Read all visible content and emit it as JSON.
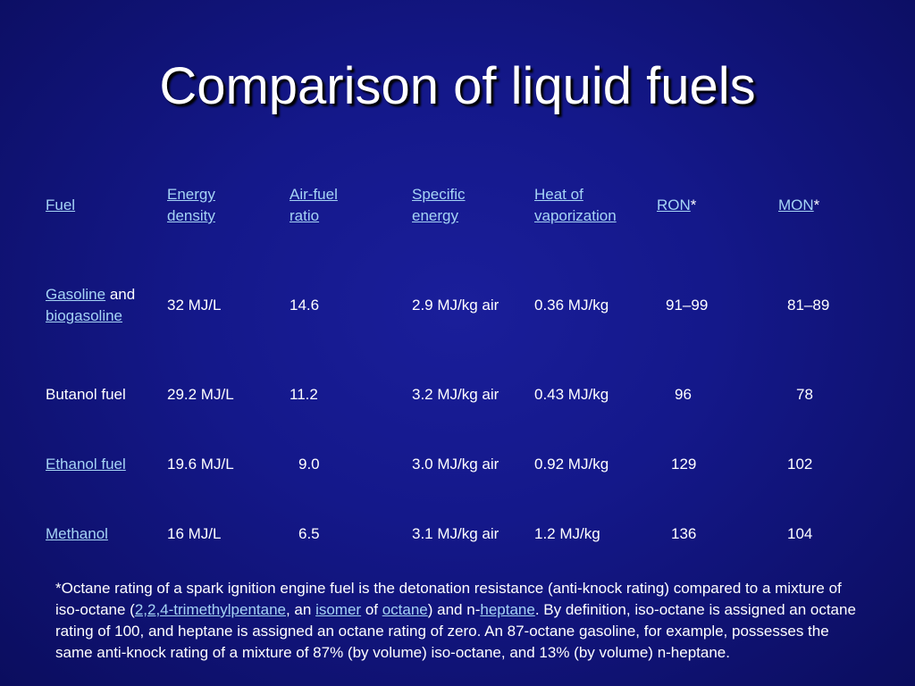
{
  "slide": {
    "title": "Comparison of liquid fuels",
    "colors": {
      "background": "#14188a",
      "link": "#a6d4f5",
      "text": "#ffffff"
    }
  },
  "table": {
    "headers": {
      "fuel": "Fuel",
      "energy_density_1": "Energy",
      "energy_density_2": "density",
      "air_fuel_1": "Air-fuel",
      "air_fuel_2": "ratio",
      "specific_energy_1": "Specific",
      "specific_energy_2": "energy",
      "heat_vap_1": "Heat of",
      "heat_vap_2": "vaporization",
      "ron": "RON",
      "ron_star": "*",
      "mon": "MON",
      "mon_star": "*"
    },
    "rows": [
      {
        "fuel_link_1": "Gasoline",
        "fuel_text": " and ",
        "fuel_link_2": "biogasoline",
        "energy_density": "32 MJ/L",
        "air_fuel": "14.6",
        "specific_energy": "2.9 MJ/kg air",
        "heat_vap": "0.36 MJ/kg",
        "ron": "91–99",
        "mon": "81–89"
      },
      {
        "fuel": "Butanol fuel",
        "energy_density": "29.2 MJ/L",
        "air_fuel": "11.2",
        "specific_energy": "3.2 MJ/kg air",
        "heat_vap": "0.43 MJ/kg",
        "ron": "96",
        "mon": "78"
      },
      {
        "fuel_link": "Ethanol fuel",
        "energy_density": "19.6 MJ/L",
        "air_fuel": "9.0",
        "specific_energy": "3.0 MJ/kg air",
        "heat_vap": "0.92 MJ/kg",
        "ron": "129",
        "mon": "102"
      },
      {
        "fuel_link": "Methanol",
        "energy_density": "16 MJ/L",
        "air_fuel": "6.5",
        "specific_energy": "3.1 MJ/kg air",
        "heat_vap": "1.2 MJ/kg",
        "ron": "136",
        "mon": "104"
      }
    ]
  },
  "footnote": {
    "t1": "*Octane rating of a spark ignition engine fuel is the detonation resistance (anti-knock rating) compared to a mixture of iso-octane (",
    "l1": "2,2,4-trimethylpentane",
    "t2": ", an ",
    "l2": "isomer",
    "t3": " of ",
    "l3": "octane",
    "t4": ") and n-",
    "l4": "heptane",
    "t5": ". By definition, iso-octane is assigned an octane rating of 100, and heptane is assigned an octane rating of zero. An 87-octane gasoline, for example, possesses the same anti-knock rating of a mixture of 87% (by volume) iso-octane, and 13% (by volume) n-heptane."
  }
}
